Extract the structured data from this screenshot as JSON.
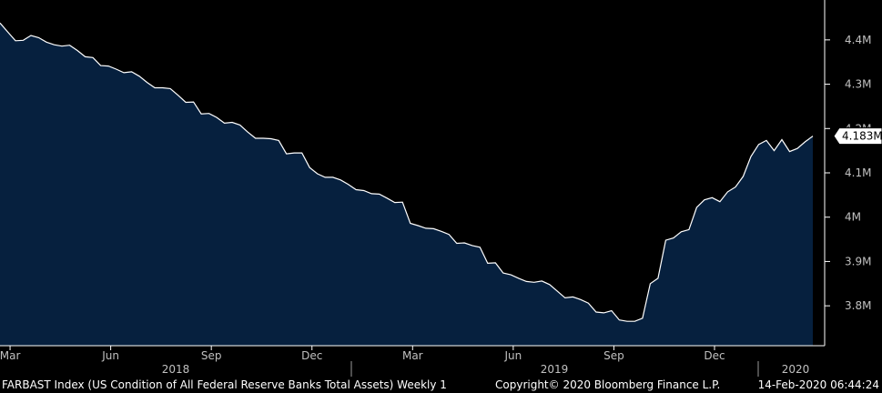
{
  "chart_data": {
    "type": "area",
    "x_unit": "week",
    "month_ticks": [
      "Mar",
      "Jun",
      "Sep",
      "Dec",
      "Mar",
      "Jun",
      "Sep",
      "Dec"
    ],
    "year_labels": [
      "2018",
      "2019",
      "2020"
    ],
    "y_ticks": [
      "4.4M",
      "4.3M",
      "4.2M",
      "4.1M",
      "4M",
      "3.9M",
      "3.8M"
    ],
    "y_tick_values": [
      4.4,
      4.3,
      4.2,
      4.1,
      4.0,
      3.9,
      3.8
    ],
    "ylim": [
      3.71,
      4.49
    ],
    "last_value_label": "4.183M",
    "last_value": 4.183,
    "series": [
      {
        "values": [
          4.438,
          4.418,
          4.398,
          4.399,
          4.41,
          4.405,
          4.395,
          4.389,
          4.386,
          4.388,
          4.376,
          4.362,
          4.36,
          4.342,
          4.341,
          4.334,
          4.326,
          4.328,
          4.318,
          4.304,
          4.292,
          4.292,
          4.29,
          4.275,
          4.259,
          4.26,
          4.233,
          4.234,
          4.225,
          4.212,
          4.214,
          4.208,
          4.192,
          4.178,
          4.178,
          4.177,
          4.173,
          4.143,
          4.145,
          4.145,
          4.112,
          4.098,
          4.09,
          4.09,
          4.084,
          4.074,
          4.062,
          4.06,
          4.053,
          4.052,
          4.043,
          4.033,
          4.034,
          3.986,
          3.981,
          3.975,
          3.974,
          3.968,
          3.961,
          3.941,
          3.942,
          3.936,
          3.932,
          3.896,
          3.897,
          3.874,
          3.87,
          3.862,
          3.855,
          3.853,
          3.856,
          3.848,
          3.833,
          3.818,
          3.82,
          3.814,
          3.806,
          3.786,
          3.784,
          3.789,
          3.768,
          3.765,
          3.765,
          3.772,
          3.85,
          3.862,
          3.948,
          3.953,
          3.967,
          3.972,
          4.022,
          4.039,
          4.044,
          4.035,
          4.057,
          4.068,
          4.092,
          4.137,
          4.164,
          4.173,
          4.15,
          4.175,
          4.148,
          4.155,
          4.17,
          4.183
        ]
      }
    ],
    "colors": {
      "background": "#000000",
      "area_fill": "#06203e",
      "line": "#ffffff",
      "tick": "#c0c0c0"
    },
    "grid": false
  },
  "footer": {
    "left": "FARBAST Index (US Condition of All Federal Reserve Banks Total Assets)  Weekly 1",
    "middle": "Copyright© 2020 Bloomberg Finance L.P.",
    "right": "14-Feb-2020 06:44:24"
  }
}
